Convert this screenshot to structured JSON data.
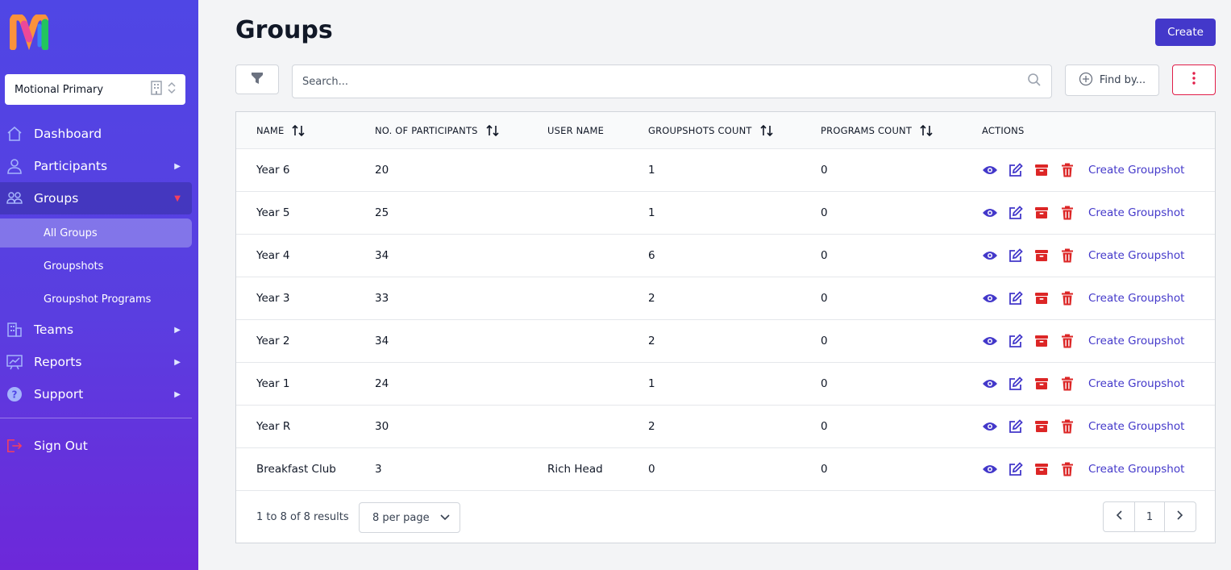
{
  "sidebar": {
    "org_select": {
      "label": "Motional Primary"
    },
    "nav": [
      {
        "label": "Dashboard",
        "icon": "home-icon"
      },
      {
        "label": "Participants",
        "icon": "user-icon"
      },
      {
        "label": "Groups",
        "icon": "users-icon"
      },
      {
        "label": "Teams",
        "icon": "building-icon"
      },
      {
        "label": "Reports",
        "icon": "chart-icon"
      },
      {
        "label": "Support",
        "icon": "help-icon"
      }
    ],
    "sub_nav": [
      "All Groups",
      "Groupshots",
      "Groupshot Programs"
    ],
    "sign_out": "Sign Out",
    "colors": {
      "gradient_top": "#4f46e5",
      "gradient_bottom": "#6d28d9",
      "active_caret": "#f43f5e",
      "sign_out_icon": "#f43f5e"
    }
  },
  "header": {
    "title": "Groups",
    "create_label": "Create"
  },
  "toolbar": {
    "search_placeholder": "Search...",
    "find_by_label": "Find by..."
  },
  "table": {
    "columns": [
      "NAME",
      "NO. OF PARTICIPANTS",
      "USER NAME",
      "GROUPSHOTS COUNT",
      "PROGRAMS COUNT",
      "ACTIONS"
    ],
    "rows": [
      {
        "name": "Year 6",
        "participants": "20",
        "user_name": "",
        "groupshots": "1",
        "programs": "0"
      },
      {
        "name": "Year 5",
        "participants": "25",
        "user_name": "",
        "groupshots": "1",
        "programs": "0"
      },
      {
        "name": "Year 4",
        "participants": "34",
        "user_name": "",
        "groupshots": "6",
        "programs": "0"
      },
      {
        "name": "Year 3",
        "participants": "33",
        "user_name": "",
        "groupshots": "2",
        "programs": "0"
      },
      {
        "name": "Year 2",
        "participants": "34",
        "user_name": "",
        "groupshots": "2",
        "programs": "0"
      },
      {
        "name": "Year 1",
        "participants": "24",
        "user_name": "",
        "groupshots": "1",
        "programs": "0"
      },
      {
        "name": "Year R",
        "participants": "30",
        "user_name": "",
        "groupshots": "2",
        "programs": "0"
      },
      {
        "name": "Breakfast Club",
        "participants": "3",
        "user_name": "Rich Head",
        "groupshots": "0",
        "programs": "0"
      }
    ],
    "action_link": "Create Groupshot",
    "action_icons": [
      "eye-icon",
      "edit-icon",
      "archive-icon",
      "trash-icon"
    ],
    "colors": {
      "primary": "#4338ca",
      "danger": "#dc2626"
    }
  },
  "footer": {
    "results": "1 to 8 of 8 results",
    "per_page": "8 per page",
    "current_page": "1"
  }
}
